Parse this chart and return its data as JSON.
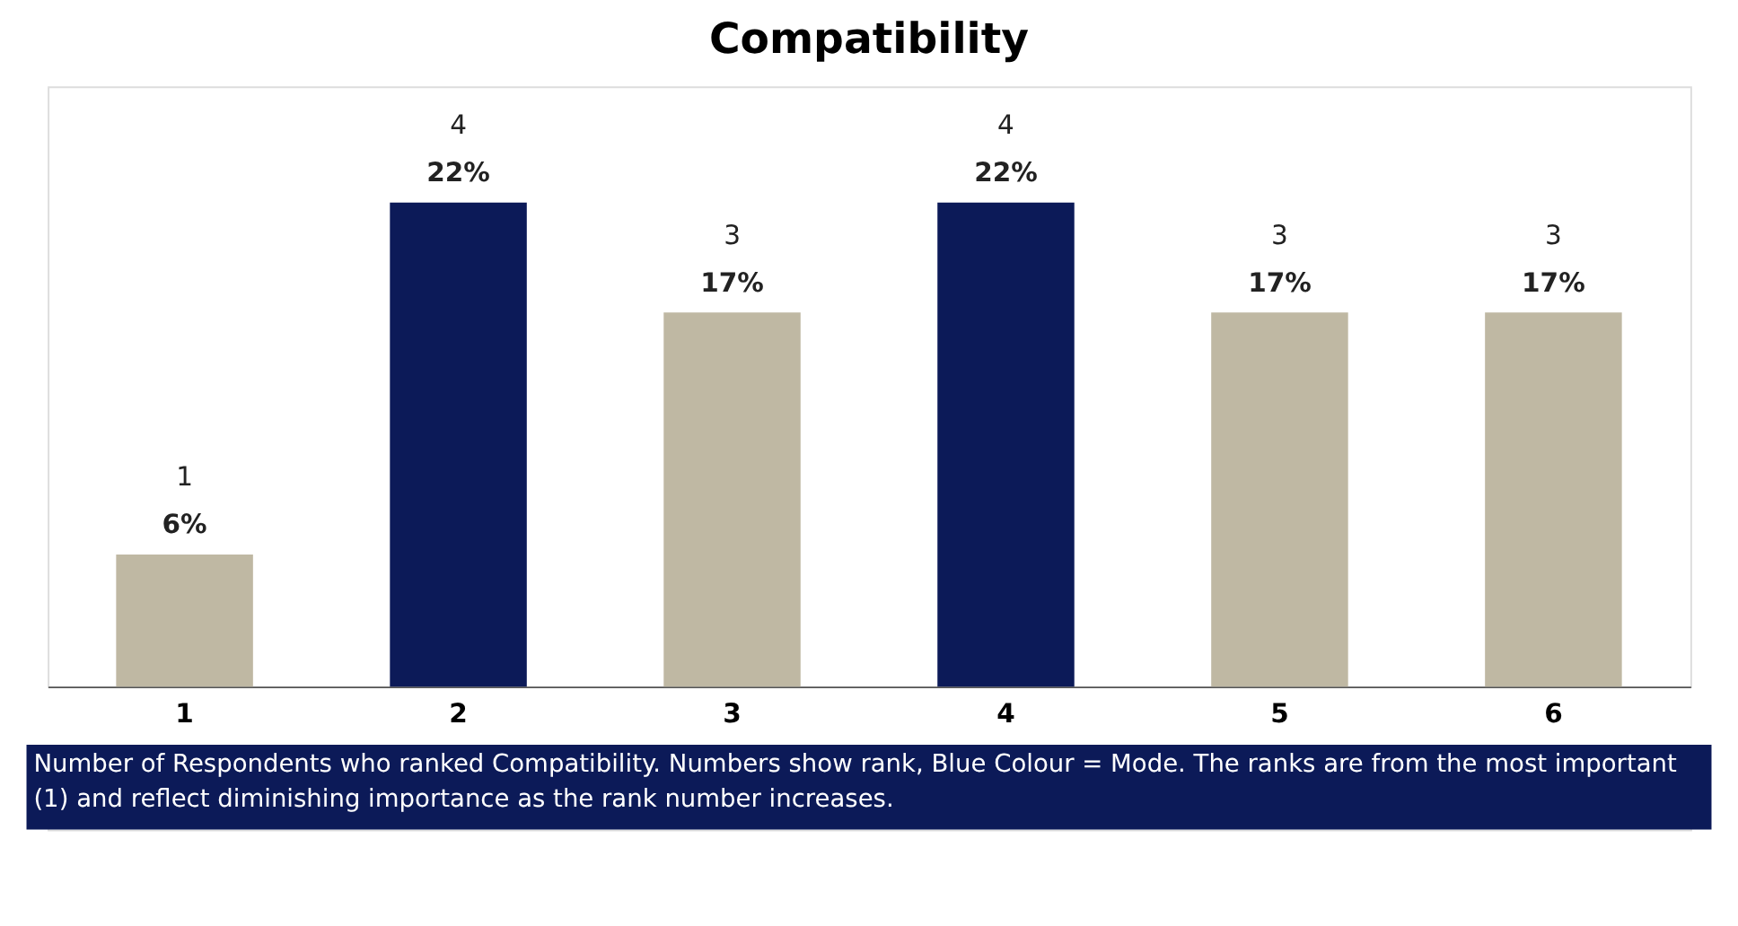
{
  "chart_data": {
    "type": "bar",
    "title": "Compatibility",
    "categories": [
      "1",
      "2",
      "3",
      "4",
      "5",
      "6"
    ],
    "values": [
      6,
      22,
      17,
      22,
      17,
      17
    ],
    "colors": [
      "#bfb8a3",
      "#0c1a58",
      "#bfb8a3",
      "#0c1a58",
      "#bfb8a3",
      "#bfb8a3"
    ],
    "value_labels": [
      "6%",
      "22%",
      "17%",
      "22%",
      "17%",
      "17%"
    ],
    "tick_labels": "x",
    "grid": false,
    "annotations": [
      {
        "text": "1",
        "x": "1",
        "y": 6
      },
      {
        "text": "4",
        "x": "2",
        "y": 22
      },
      {
        "text": "3",
        "x": "3",
        "y": 17
      },
      {
        "text": "4",
        "x": "4",
        "y": 22
      },
      {
        "text": "3",
        "x": "5",
        "y": 17
      },
      {
        "text": "3",
        "x": "6",
        "y": 17
      },
      "Number of Respondents who ranked Compatibility.  Numbers show rank, Blue Colour = Mode. The ranks are from the most important (1) and reflect diminishing importance as the rank number increases."
    ]
  }
}
